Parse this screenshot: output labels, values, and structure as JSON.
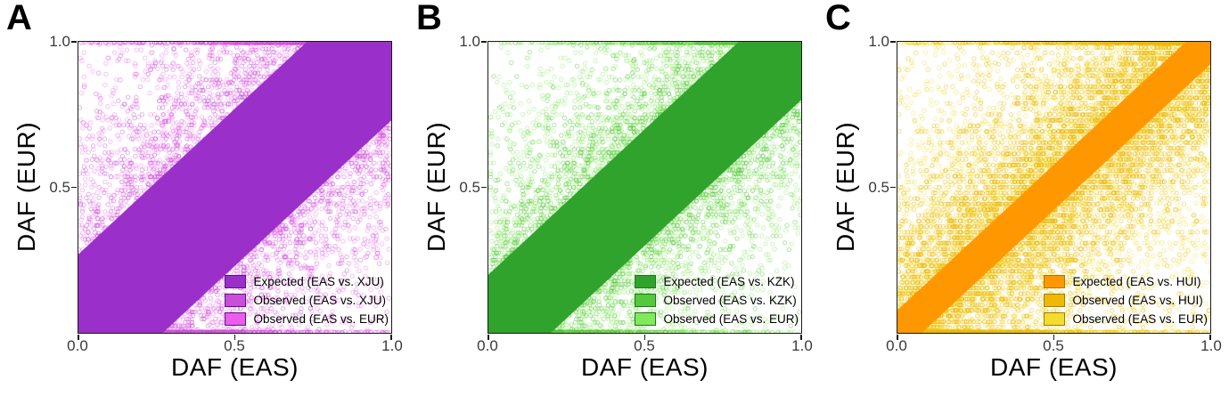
{
  "figure": {
    "panels": [
      {
        "letter": "A"
      },
      {
        "letter": "B"
      },
      {
        "letter": "C"
      }
    ]
  },
  "chart_data": [
    {
      "type": "scatter",
      "panel": "A",
      "xlabel": "DAF (EAS)",
      "ylabel": "DAF (EUR)",
      "xlim": [
        0,
        1
      ],
      "ylim": [
        0,
        1
      ],
      "x_ticks": [
        0.0,
        0.5,
        1.0
      ],
      "y_ticks": [
        1.0,
        0.5
      ],
      "x_tick_labels": [
        "0.0",
        "0.5",
        "1.0"
      ],
      "y_tick_labels": [
        "1.0",
        "0.5"
      ],
      "grid": false,
      "legend_position": "bottom-right",
      "swatch_border": "#5e1580",
      "seed": 11,
      "series": [
        {
          "name": "Expected (EAS vs. XJU)",
          "role": "expected-band",
          "color": "#9b2fc9",
          "band_halfwidth": 0.27
        },
        {
          "name": "Observed (EAS vs. XJU)",
          "role": "observed-scatter",
          "color": "#c94fd9",
          "spread": 0.18,
          "count": 6500,
          "quant": 84,
          "alpha": 0.5,
          "uniform_frac": 0.02
        },
        {
          "name": "Observed (EAS vs. EUR)",
          "role": "observed-scatter",
          "color": "#ec5bec",
          "spread": 0.3,
          "count": 7000,
          "quant": 108,
          "alpha": 0.42,
          "uniform_frac": 0.05
        }
      ]
    },
    {
      "type": "scatter",
      "panel": "B",
      "xlabel": "DAF (EAS)",
      "ylabel": "DAF (EUR)",
      "xlim": [
        0,
        1
      ],
      "ylim": [
        0,
        1
      ],
      "x_ticks": [
        0.0,
        0.5,
        1.0
      ],
      "y_ticks": [
        1.0,
        0.5
      ],
      "x_tick_labels": [
        "0.0",
        "0.5",
        "1.0"
      ],
      "y_tick_labels": [
        "1.0",
        "0.5"
      ],
      "grid": false,
      "legend_position": "bottom-right",
      "swatch_border": "#1b7a1b",
      "seed": 22,
      "series": [
        {
          "name": "Expected (EAS vs. KZK)",
          "role": "expected-band",
          "color": "#2fa32c",
          "band_halfwidth": 0.2
        },
        {
          "name": "Observed (EAS vs. KZK)",
          "role": "observed-scatter",
          "color": "#55c83c",
          "spread": 0.14,
          "count": 6500,
          "quant": 84,
          "alpha": 0.5,
          "uniform_frac": 0.02
        },
        {
          "name": "Observed (EAS vs. EUR)",
          "role": "observed-scatter",
          "color": "#82e95c",
          "spread": 0.28,
          "count": 7000,
          "quant": 108,
          "alpha": 0.45,
          "uniform_frac": 0.05
        }
      ]
    },
    {
      "type": "scatter",
      "panel": "C",
      "xlabel": "DAF (EAS)",
      "ylabel": "DAF (EUR)",
      "xlim": [
        0,
        1
      ],
      "ylim": [
        0,
        1
      ],
      "x_ticks": [
        0.0,
        0.5,
        1.0
      ],
      "y_ticks": [
        1.0,
        0.5
      ],
      "x_tick_labels": [
        "0.0",
        "0.5",
        "1.0"
      ],
      "y_tick_labels": [
        "1.0",
        "0.5"
      ],
      "grid": false,
      "legend_position": "bottom-right",
      "swatch_border": "#a67c00",
      "seed": 33,
      "series": [
        {
          "name": "Expected (EAS vs. HUI)",
          "role": "expected-band",
          "color": "#ff9800",
          "band_halfwidth": 0.078
        },
        {
          "name": "Observed (EAS vs. HUI)",
          "role": "observed-scatter",
          "color": "#edb904",
          "spread": 0.17,
          "count": 7500,
          "quant": 52,
          "alpha": 0.5,
          "uniform_frac": 0.03
        },
        {
          "name": "Observed (EAS vs. EUR)",
          "role": "observed-scatter",
          "color": "#f4dc2e",
          "spread": 0.32,
          "count": 7000,
          "quant": 110,
          "alpha": 0.45,
          "uniform_frac": 0.05
        }
      ]
    }
  ]
}
